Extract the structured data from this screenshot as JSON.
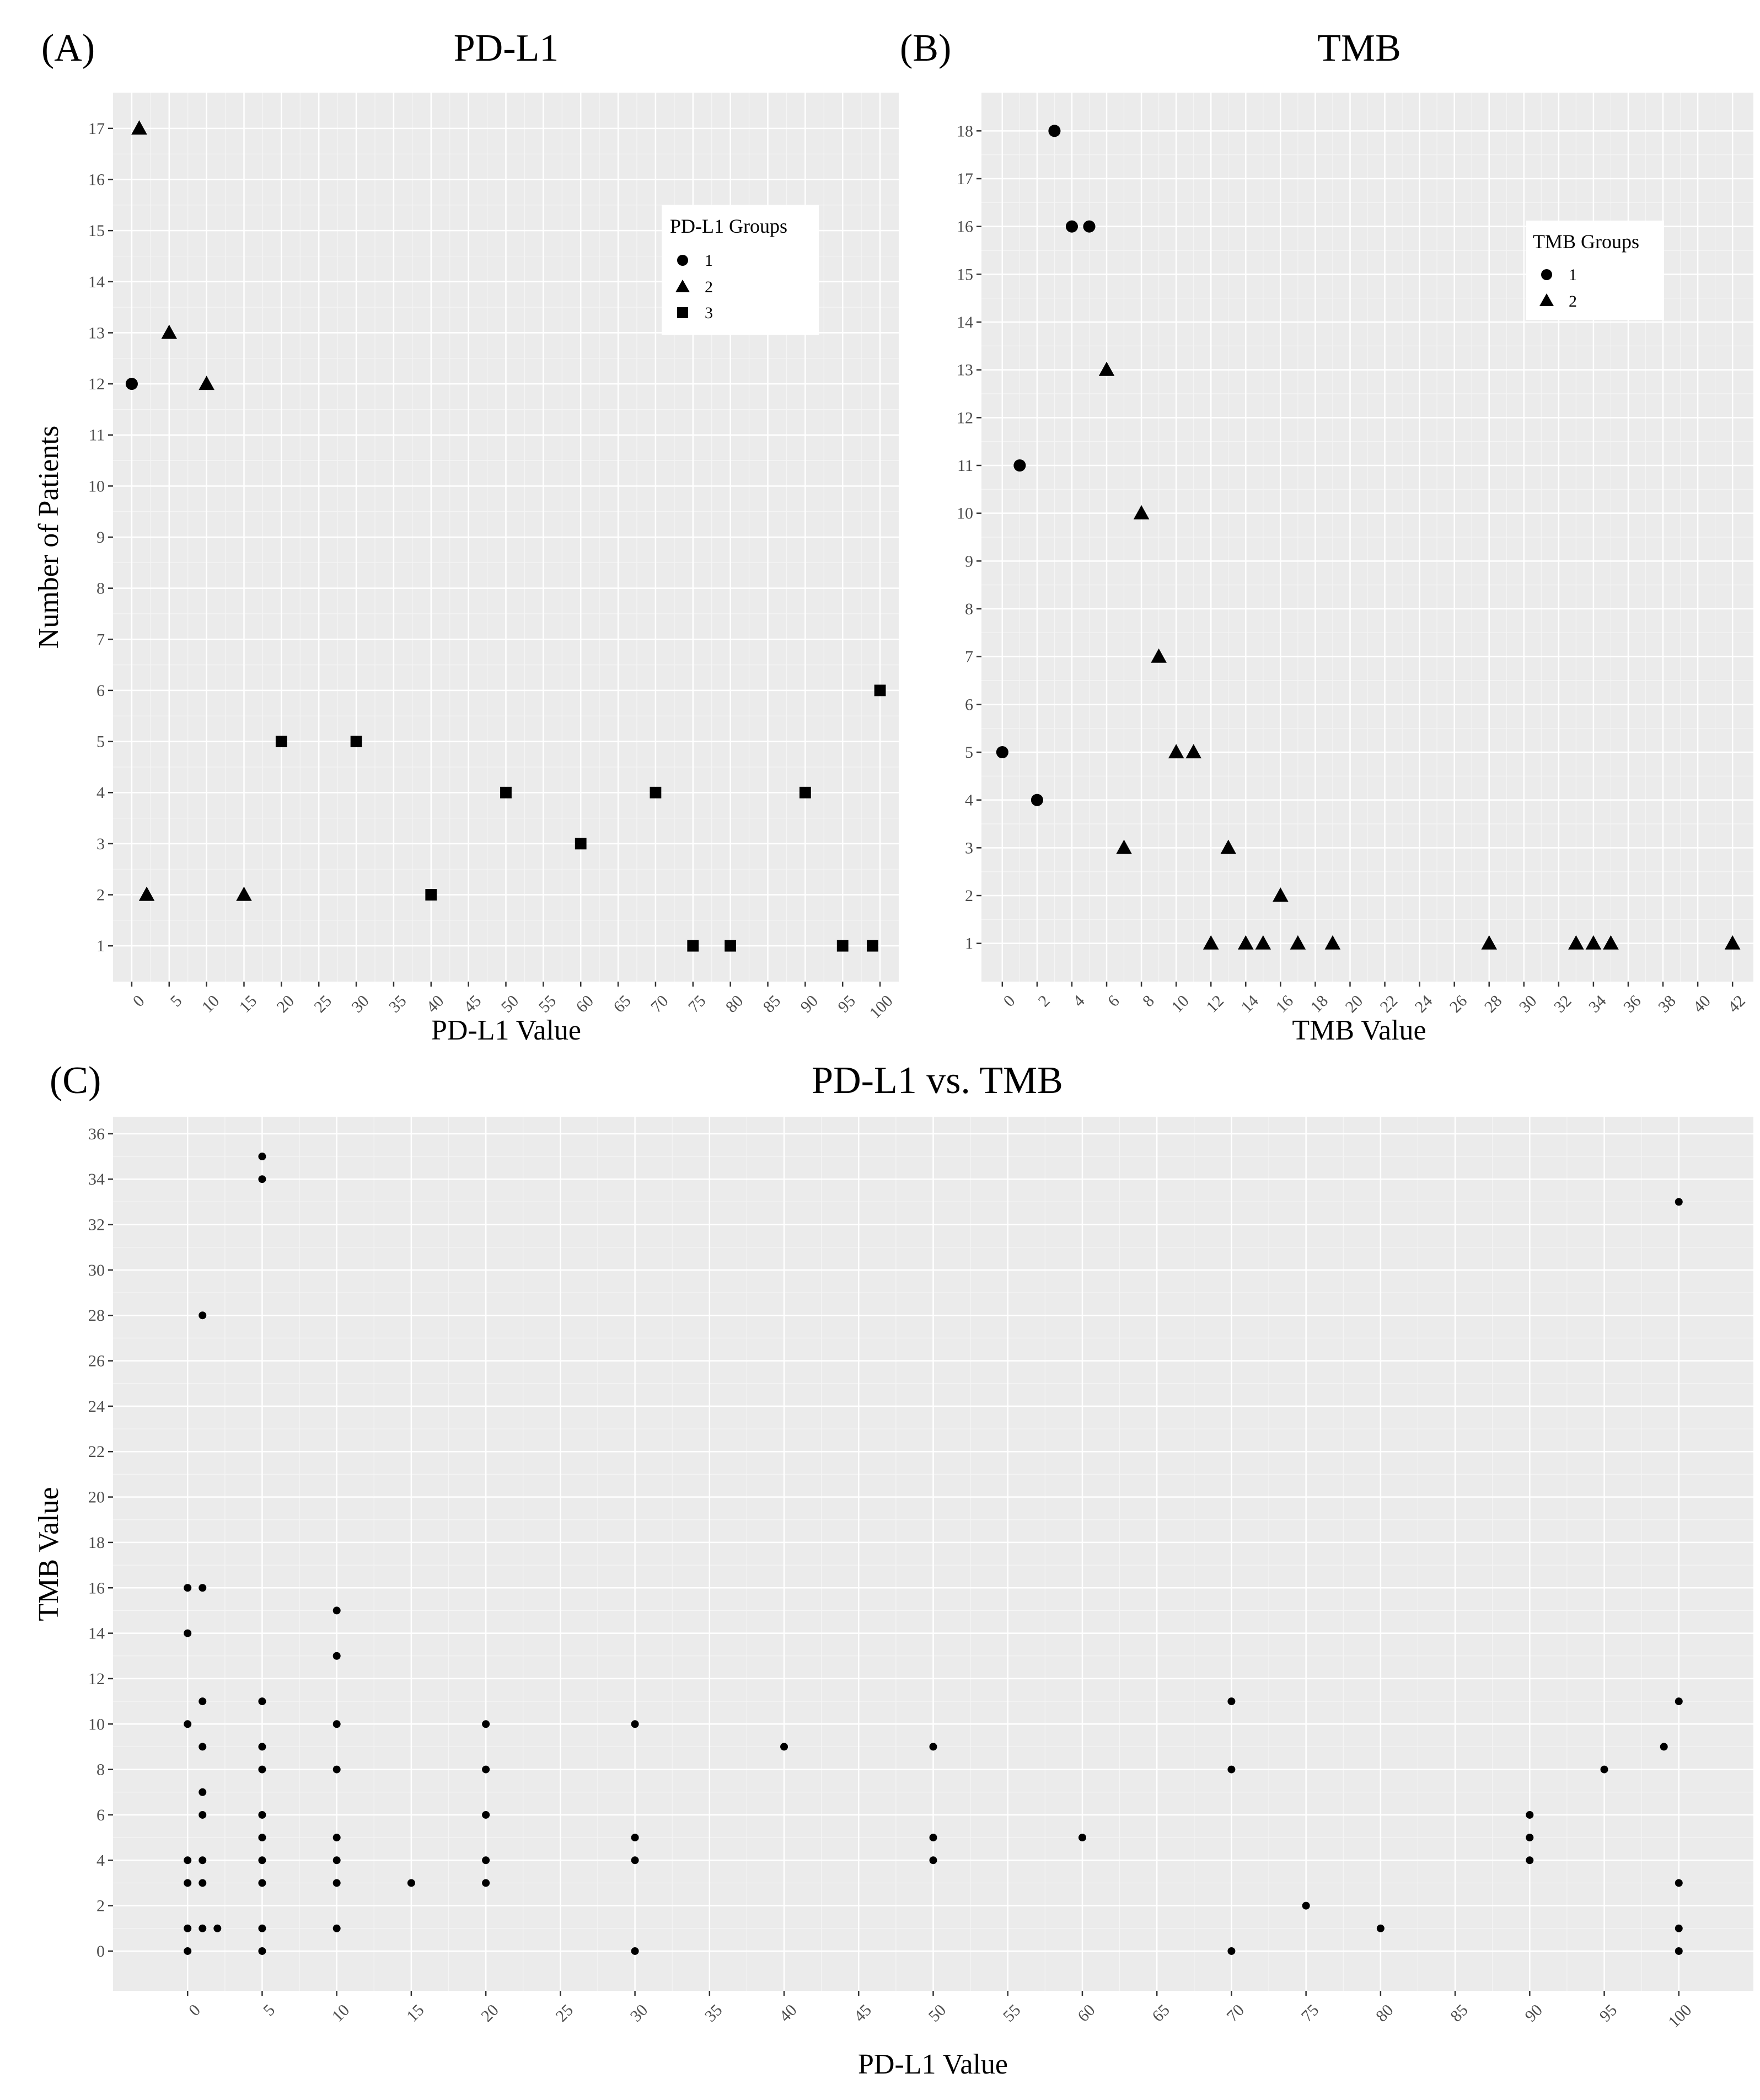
{
  "chart_data": [
    {
      "id": "A",
      "letter": "(A)",
      "type": "scatter",
      "title": "PD-L1",
      "xlabel": "PD-L1 Value",
      "ylabel": "Number of Patients",
      "xlim": [
        -2.5,
        102.5
      ],
      "ylim": [
        0.3,
        17.7
      ],
      "x_ticks": [
        0,
        5,
        10,
        15,
        20,
        25,
        30,
        35,
        40,
        45,
        50,
        55,
        60,
        65,
        70,
        75,
        80,
        85,
        90,
        95,
        100
      ],
      "y_ticks": [
        1,
        2,
        3,
        4,
        5,
        6,
        7,
        8,
        9,
        10,
        11,
        12,
        13,
        14,
        15,
        16,
        17
      ],
      "legend": {
        "title": "PD-L1 Groups",
        "position": "top-right",
        "entries": [
          {
            "label": "1",
            "shape": "circle"
          },
          {
            "label": "2",
            "shape": "triangle"
          },
          {
            "label": "3",
            "shape": "square"
          }
        ]
      },
      "series": [
        {
          "name": "1",
          "shape": "circle",
          "points": [
            [
              0,
              12
            ]
          ]
        },
        {
          "name": "2",
          "shape": "triangle",
          "points": [
            [
              1,
              17
            ],
            [
              2,
              2
            ],
            [
              5,
              13
            ],
            [
              10,
              12
            ],
            [
              15,
              2
            ]
          ]
        },
        {
          "name": "3",
          "shape": "square",
          "points": [
            [
              20,
              5
            ],
            [
              30,
              5
            ],
            [
              40,
              2
            ],
            [
              50,
              4
            ],
            [
              60,
              3
            ],
            [
              70,
              4
            ],
            [
              75,
              1
            ],
            [
              80,
              1
            ],
            [
              90,
              4
            ],
            [
              95,
              1
            ],
            [
              99,
              1
            ],
            [
              100,
              6
            ]
          ]
        }
      ]
    },
    {
      "id": "B",
      "letter": "(B)",
      "type": "scatter",
      "title": "TMB",
      "xlabel": "TMB Value",
      "ylabel": "",
      "xlim": [
        -1.2,
        43.2
      ],
      "ylim": [
        0.2,
        18.8
      ],
      "x_ticks": [
        0,
        2,
        4,
        6,
        8,
        10,
        12,
        14,
        16,
        18,
        20,
        22,
        24,
        26,
        28,
        30,
        32,
        34,
        36,
        38,
        40,
        42
      ],
      "y_ticks": [
        1,
        2,
        3,
        4,
        5,
        6,
        7,
        8,
        9,
        10,
        11,
        12,
        13,
        14,
        15,
        16,
        17,
        18
      ],
      "legend": {
        "title": "TMB Groups",
        "position": "top-right",
        "entries": [
          {
            "label": "1",
            "shape": "circle"
          },
          {
            "label": "2",
            "shape": "triangle"
          }
        ]
      },
      "series": [
        {
          "name": "1",
          "shape": "circle",
          "points": [
            [
              0,
              5
            ],
            [
              1,
              11
            ],
            [
              2,
              4
            ],
            [
              3,
              18
            ],
            [
              4,
              16
            ],
            [
              5,
              16
            ]
          ]
        },
        {
          "name": "2",
          "shape": "triangle",
          "points": [
            [
              6,
              13
            ],
            [
              7,
              3
            ],
            [
              8,
              10
            ],
            [
              9,
              7
            ],
            [
              10,
              5
            ],
            [
              11,
              5
            ],
            [
              12,
              1
            ],
            [
              13,
              3
            ],
            [
              14,
              1
            ],
            [
              15,
              1
            ],
            [
              16,
              2
            ],
            [
              17,
              1
            ],
            [
              19,
              1
            ],
            [
              28,
              1
            ],
            [
              33,
              1
            ],
            [
              34,
              1
            ],
            [
              35,
              1
            ],
            [
              42,
              1
            ]
          ]
        }
      ]
    },
    {
      "id": "C",
      "letter": "(C)",
      "type": "scatter",
      "title": "PD-L1 vs. TMB",
      "xlabel": "PD-L1 Value",
      "ylabel": "TMB Value",
      "xlim": [
        -5,
        105
      ],
      "ylim": [
        -1.75,
        36.75
      ],
      "x_ticks": [
        0,
        5,
        10,
        15,
        20,
        25,
        30,
        35,
        40,
        45,
        50,
        55,
        60,
        65,
        70,
        75,
        80,
        85,
        90,
        95,
        100
      ],
      "y_ticks": [
        0,
        2,
        4,
        6,
        8,
        10,
        12,
        14,
        16,
        18,
        20,
        22,
        24,
        26,
        28,
        30,
        32,
        34,
        36
      ],
      "series": [
        {
          "name": "patients",
          "shape": "dot",
          "points": [
            [
              0,
              0
            ],
            [
              0,
              1
            ],
            [
              0,
              3
            ],
            [
              0,
              4
            ],
            [
              0,
              10
            ],
            [
              0,
              14
            ],
            [
              0,
              16
            ],
            [
              1,
              1
            ],
            [
              1,
              3
            ],
            [
              1,
              4
            ],
            [
              1,
              6
            ],
            [
              1,
              7
            ],
            [
              1,
              9
            ],
            [
              1,
              11
            ],
            [
              1,
              16
            ],
            [
              1,
              28
            ],
            [
              2,
              1
            ],
            [
              5,
              0
            ],
            [
              5,
              1
            ],
            [
              5,
              3
            ],
            [
              5,
              4
            ],
            [
              5,
              5
            ],
            [
              5,
              6
            ],
            [
              5,
              8
            ],
            [
              5,
              9
            ],
            [
              5,
              11
            ],
            [
              5,
              34
            ],
            [
              5,
              35
            ],
            [
              10,
              1
            ],
            [
              10,
              3
            ],
            [
              10,
              4
            ],
            [
              10,
              5
            ],
            [
              10,
              8
            ],
            [
              10,
              10
            ],
            [
              10,
              13
            ],
            [
              10,
              15
            ],
            [
              15,
              3
            ],
            [
              20,
              3
            ],
            [
              20,
              4
            ],
            [
              20,
              6
            ],
            [
              20,
              8
            ],
            [
              20,
              10
            ],
            [
              30,
              0
            ],
            [
              30,
              4
            ],
            [
              30,
              5
            ],
            [
              30,
              10
            ],
            [
              40,
              9
            ],
            [
              50,
              4
            ],
            [
              50,
              5
            ],
            [
              50,
              9
            ],
            [
              60,
              5
            ],
            [
              70,
              0
            ],
            [
              70,
              8
            ],
            [
              70,
              11
            ],
            [
              75,
              2
            ],
            [
              80,
              1
            ],
            [
              90,
              4
            ],
            [
              90,
              5
            ],
            [
              90,
              6
            ],
            [
              95,
              8
            ],
            [
              99,
              9
            ],
            [
              100,
              0
            ],
            [
              100,
              1
            ],
            [
              100,
              3
            ],
            [
              100,
              11
            ],
            [
              100,
              33
            ]
          ]
        }
      ]
    }
  ]
}
